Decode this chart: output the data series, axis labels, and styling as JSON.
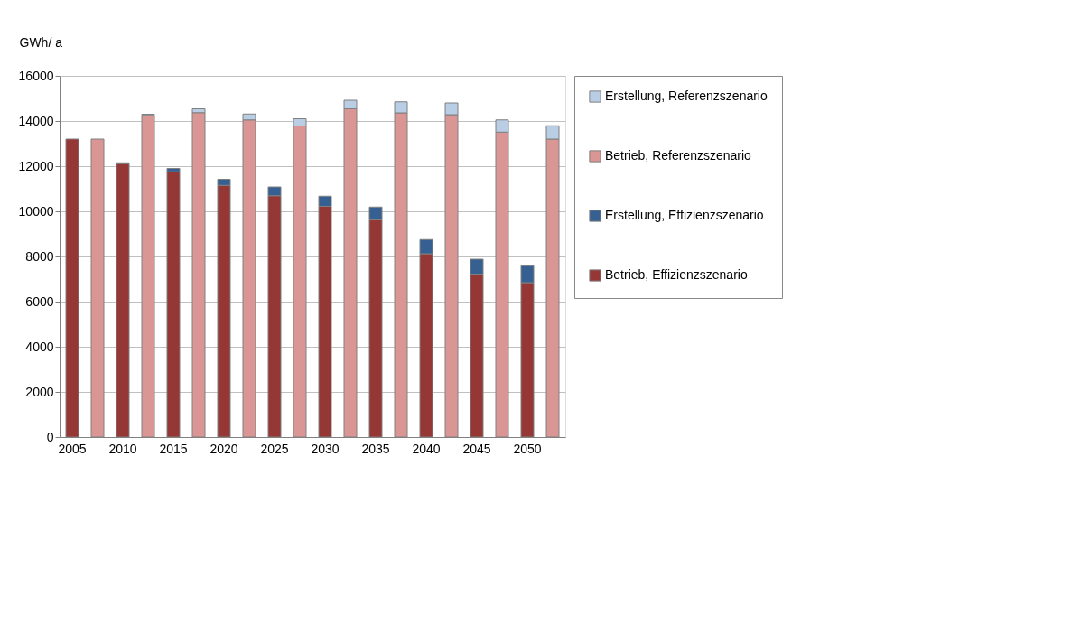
{
  "chart_data": {
    "type": "bar",
    "stacked": true,
    "ylabel": "GWh/ a",
    "categories": [
      "2005",
      null,
      "2010",
      null,
      "2015",
      null,
      "2020",
      null,
      "2025",
      null,
      "2030",
      null,
      "2035",
      null,
      "2040",
      null,
      "2045",
      null,
      "2050",
      null
    ],
    "series": [
      {
        "name": "Betrieb, Effizienzszenario",
        "color": "#953735",
        "values": [
          13200,
          null,
          12100,
          null,
          11750,
          null,
          11150,
          null,
          10690,
          null,
          10220,
          null,
          9620,
          null,
          8120,
          null,
          7220,
          null,
          6840,
          null
        ]
      },
      {
        "name": "Erstellung, Effizienzszenario",
        "color": "#366092",
        "values": [
          null,
          null,
          50,
          null,
          150,
          null,
          270,
          null,
          390,
          null,
          450,
          null,
          570,
          null,
          630,
          null,
          660,
          null,
          750,
          null
        ]
      },
      {
        "name": "Betrieb, Referenzszenario",
        "color": "#d99694",
        "values": [
          null,
          13200,
          null,
          14250,
          null,
          14370,
          null,
          14050,
          null,
          13780,
          null,
          14540,
          null,
          14360,
          null,
          14280,
          null,
          13510,
          null,
          13200
        ]
      },
      {
        "name": "Erstellung, Referenzszenario",
        "color": "#b9cde5",
        "values": [
          null,
          null,
          null,
          50,
          null,
          170,
          null,
          260,
          null,
          320,
          null,
          380,
          null,
          490,
          null,
          520,
          null,
          540,
          null,
          590
        ]
      }
    ],
    "ylim": [
      0,
      16000
    ],
    "yticks": [
      0,
      2000,
      4000,
      6000,
      8000,
      10000,
      12000,
      14000,
      16000
    ],
    "grid": "y",
    "legend": "right"
  }
}
